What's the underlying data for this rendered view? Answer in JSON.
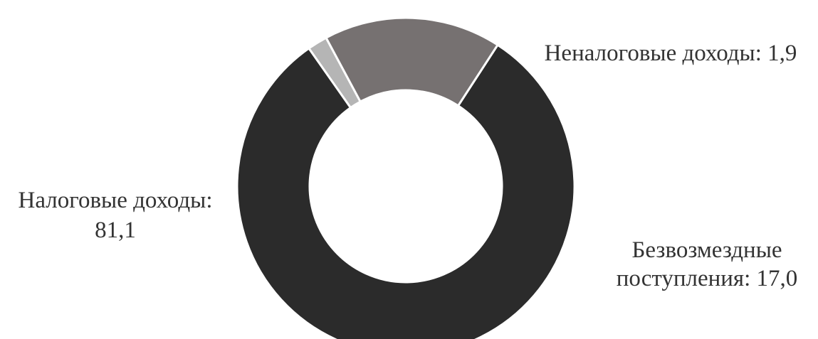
{
  "chart_data": {
    "type": "pie",
    "variant": "donut",
    "title": "",
    "legend": "none",
    "slices": [
      {
        "name": "Налоговые доходы",
        "value": 81.1,
        "label_lines": [
          "Налоговые доходы:",
          "81,1"
        ],
        "color": "#2b2b2b"
      },
      {
        "name": "Неналоговые доходы",
        "value": 1.9,
        "label_lines": [
          "Неналоговые доходы: 1,9"
        ],
        "color": "#b5b5b5"
      },
      {
        "name": "Безвозмездные поступления",
        "value": 17.0,
        "label_lines": [
          "Безвозмездные",
          "поступления: 17,0"
        ],
        "color": "#767171"
      }
    ]
  }
}
